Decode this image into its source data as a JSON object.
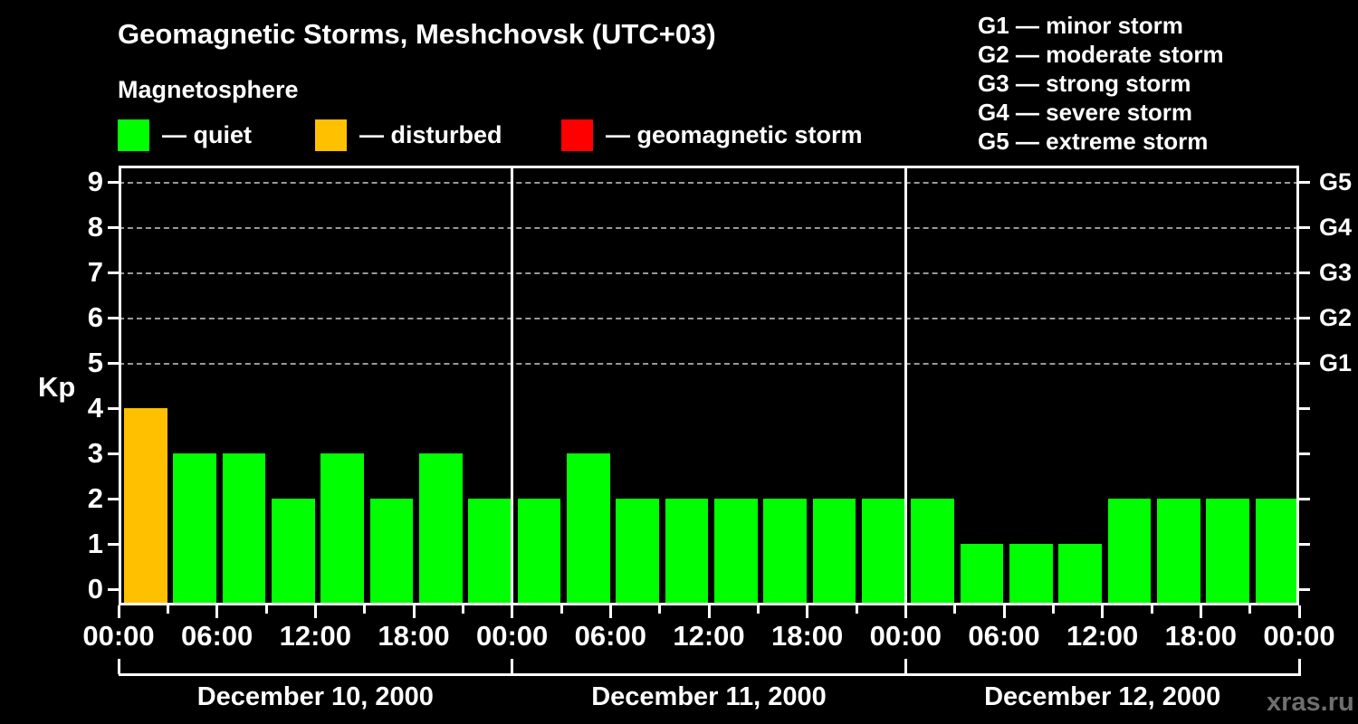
{
  "header": {
    "title": "Geomagnetic Storms, Meshchovsk (UTC+03)",
    "subtitle": "Magnetosphere"
  },
  "kp_legend": {
    "items": [
      {
        "name": "quiet",
        "label": "— quiet",
        "color": "#00FF00"
      },
      {
        "name": "disturbed",
        "label": "— disturbed",
        "color": "#FFC000"
      },
      {
        "name": "storm",
        "label": "— geomagnetic storm",
        "color": "#FF0000"
      }
    ]
  },
  "g_legend": {
    "items": [
      "G1 — minor storm",
      "G2 — moderate storm",
      "G3 — strong storm",
      "G4 — severe storm",
      "G5 — extreme storm"
    ]
  },
  "watermark": "xras.ru",
  "chart_data": {
    "type": "bar",
    "title": "Geomagnetic Storms, Meshchovsk (UTC+03)",
    "ylabel": "Kp",
    "ylim": [
      0,
      9
    ],
    "y_ticks": [
      0,
      1,
      2,
      3,
      4,
      5,
      6,
      7,
      8,
      9
    ],
    "grid_levels": [
      5,
      6,
      7,
      8,
      9
    ],
    "grid_color": "#999999",
    "right_axis": [
      {
        "kp": 5,
        "label": "G1"
      },
      {
        "kp": 6,
        "label": "G2"
      },
      {
        "kp": 7,
        "label": "G3"
      },
      {
        "kp": 8,
        "label": "G4"
      },
      {
        "kp": 9,
        "label": "G5"
      }
    ],
    "x_tick_interval_hours": 3,
    "x_label_interval_hours": 6,
    "x_labels_cycle": [
      "00:00",
      "06:00",
      "12:00",
      "18:00"
    ],
    "x_final_label": "00:00",
    "bar_color_rule": {
      "kp_0_to_3": "quiet",
      "kp_4": "disturbed",
      "kp_5_to_9": "storm"
    },
    "bar_colors": {
      "quiet": "#00FF00",
      "disturbed": "#FFC000",
      "storm": "#FF0000"
    },
    "days": [
      {
        "date": "December 10, 2000",
        "kp_values": [
          4,
          3,
          3,
          2,
          3,
          2,
          3,
          2
        ]
      },
      {
        "date": "December 11, 2000",
        "kp_values": [
          2,
          3,
          2,
          2,
          2,
          2,
          2,
          2
        ]
      },
      {
        "date": "December 12, 2000",
        "kp_values": [
          2,
          1,
          1,
          1,
          2,
          2,
          2,
          2
        ]
      }
    ]
  }
}
